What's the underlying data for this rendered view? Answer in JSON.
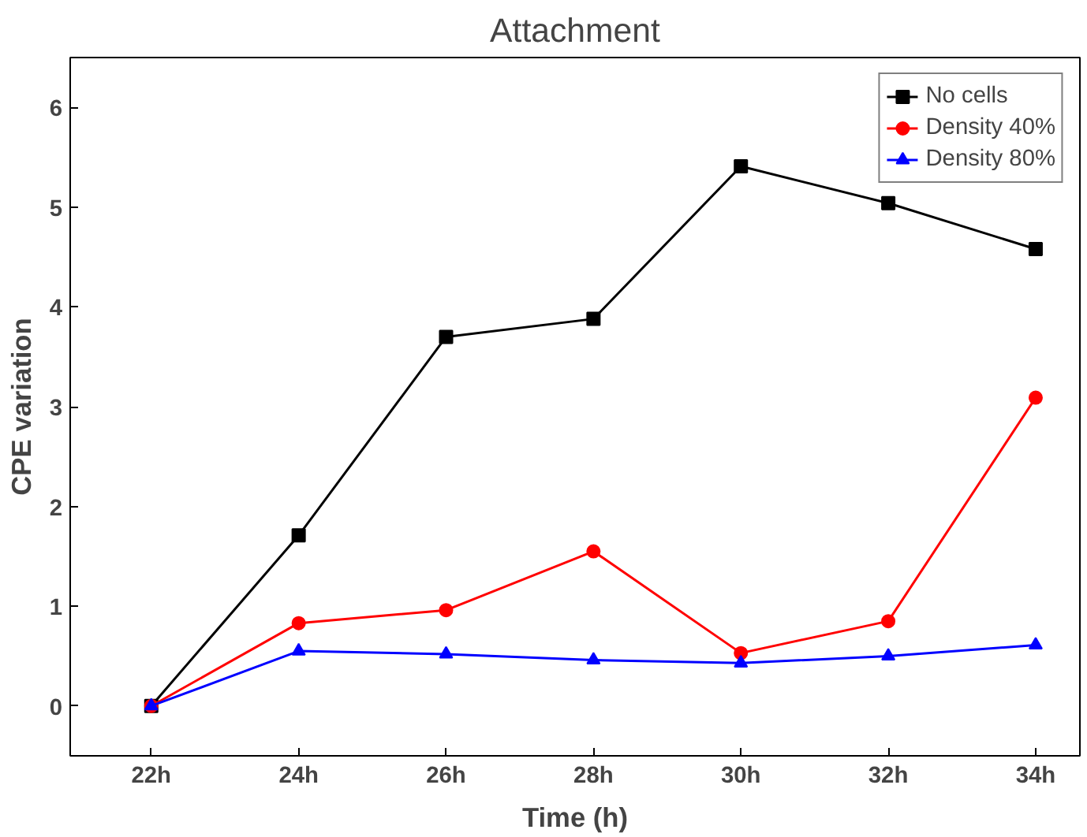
{
  "chart_data": {
    "type": "line",
    "title": "Attachment",
    "xlabel": "Time (h)",
    "ylabel": "CPE variation",
    "categories": [
      "22h",
      "24h",
      "26h",
      "28h",
      "30h",
      "32h",
      "34h"
    ],
    "series": [
      {
        "name": "No cells",
        "color": "#000000",
        "marker": "square",
        "values": [
          0,
          1.71,
          3.7,
          3.88,
          5.41,
          5.04,
          4.58
        ]
      },
      {
        "name": "Density 40%",
        "color": "#ff0000",
        "marker": "circle",
        "values": [
          0,
          0.83,
          0.96,
          1.55,
          0.53,
          0.85,
          3.09
        ]
      },
      {
        "name": "Density 80%",
        "color": "#0000ff",
        "marker": "triangle",
        "values": [
          0,
          0.55,
          0.52,
          0.46,
          0.43,
          0.5,
          0.61
        ]
      }
    ],
    "ylim": [
      -0.5,
      6.5
    ],
    "yticks": [
      0,
      1,
      2,
      3,
      4,
      5,
      6
    ],
    "grid": false,
    "legend": "top right",
    "line_style": "solid"
  }
}
